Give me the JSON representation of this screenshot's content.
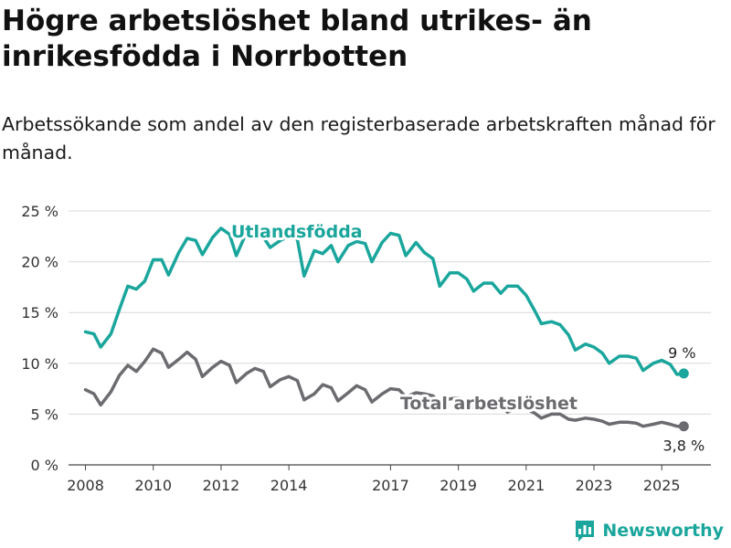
{
  "header": {
    "title": "Högre arbetslöshet bland utrikes- än inrikesfödda i Norrbotten",
    "subtitle": "Arbetssökande som andel av den registerbaserade arbetskraften månad för månad."
  },
  "brand": {
    "name": "Newsworthy",
    "icon": "newsworthy-logo-icon",
    "color": "#1aa69c"
  },
  "chart_data": {
    "type": "line",
    "y_ticks": [
      "0 %",
      "5 %",
      "10 %",
      "15 %",
      "20 %",
      "25 %"
    ],
    "ylim": [
      0,
      25
    ],
    "x_ticks": [
      "2008",
      "2010",
      "2012",
      "2014",
      "2017",
      "2019",
      "2021",
      "2023",
      "2025"
    ],
    "x_tick_years": [
      2008,
      2010,
      2012,
      2014,
      2017,
      2019,
      2021,
      2023,
      2025
    ],
    "xlim": [
      2007.5,
      2026.45
    ],
    "grid": "horizontal",
    "series": [
      {
        "name": "Utlandsfödda",
        "color": "#1aa69c",
        "end_label": "9 %",
        "points": [
          [
            2008.0,
            13.1
          ],
          [
            2008.25,
            12.9
          ],
          [
            2008.45,
            11.6
          ],
          [
            2008.75,
            12.9
          ],
          [
            2009.0,
            15.3
          ],
          [
            2009.25,
            17.6
          ],
          [
            2009.5,
            17.3
          ],
          [
            2009.75,
            18.1
          ],
          [
            2010.0,
            20.2
          ],
          [
            2010.25,
            20.2
          ],
          [
            2010.45,
            18.7
          ],
          [
            2010.75,
            20.9
          ],
          [
            2011.0,
            22.3
          ],
          [
            2011.25,
            22.1
          ],
          [
            2011.45,
            20.7
          ],
          [
            2011.75,
            22.4
          ],
          [
            2012.0,
            23.3
          ],
          [
            2012.25,
            22.7
          ],
          [
            2012.45,
            20.6
          ],
          [
            2012.75,
            22.9
          ],
          [
            2013.0,
            22.5
          ],
          [
            2013.25,
            22.4
          ],
          [
            2013.45,
            21.4
          ],
          [
            2013.75,
            22.1
          ],
          [
            2014.0,
            22.5
          ],
          [
            2014.25,
            22.2
          ],
          [
            2014.45,
            18.6
          ],
          [
            2014.75,
            21.1
          ],
          [
            2015.0,
            20.8
          ],
          [
            2015.25,
            21.6
          ],
          [
            2015.45,
            20.0
          ],
          [
            2015.75,
            21.6
          ],
          [
            2016.0,
            22.0
          ],
          [
            2016.25,
            21.8
          ],
          [
            2016.45,
            20.0
          ],
          [
            2016.75,
            21.9
          ],
          [
            2017.0,
            22.8
          ],
          [
            2017.25,
            22.6
          ],
          [
            2017.45,
            20.6
          ],
          [
            2017.75,
            21.9
          ],
          [
            2018.0,
            20.9
          ],
          [
            2018.25,
            20.3
          ],
          [
            2018.45,
            17.6
          ],
          [
            2018.75,
            18.9
          ],
          [
            2019.0,
            18.9
          ],
          [
            2019.25,
            18.3
          ],
          [
            2019.45,
            17.1
          ],
          [
            2019.75,
            17.9
          ],
          [
            2020.0,
            17.9
          ],
          [
            2020.25,
            16.9
          ],
          [
            2020.45,
            17.6
          ],
          [
            2020.75,
            17.6
          ],
          [
            2021.0,
            16.7
          ],
          [
            2021.25,
            15.2
          ],
          [
            2021.45,
            13.9
          ],
          [
            2021.75,
            14.1
          ],
          [
            2022.0,
            13.8
          ],
          [
            2022.25,
            12.8
          ],
          [
            2022.45,
            11.3
          ],
          [
            2022.75,
            11.9
          ],
          [
            2023.0,
            11.6
          ],
          [
            2023.25,
            11.0
          ],
          [
            2023.45,
            10.0
          ],
          [
            2023.75,
            10.7
          ],
          [
            2024.0,
            10.7
          ],
          [
            2024.25,
            10.5
          ],
          [
            2024.45,
            9.3
          ],
          [
            2024.75,
            10.0
          ],
          [
            2025.0,
            10.3
          ],
          [
            2025.25,
            9.9
          ],
          [
            2025.45,
            8.9
          ],
          [
            2025.65,
            9.0
          ]
        ]
      },
      {
        "name": "Total arbetslöshet",
        "color": "#6b6b70",
        "end_label": "3,8 %",
        "points": [
          [
            2008.0,
            7.4
          ],
          [
            2008.25,
            7.0
          ],
          [
            2008.45,
            5.9
          ],
          [
            2008.75,
            7.2
          ],
          [
            2009.0,
            8.8
          ],
          [
            2009.25,
            9.8
          ],
          [
            2009.5,
            9.2
          ],
          [
            2009.75,
            10.2
          ],
          [
            2010.0,
            11.4
          ],
          [
            2010.25,
            11.0
          ],
          [
            2010.45,
            9.6
          ],
          [
            2010.75,
            10.4
          ],
          [
            2011.0,
            11.1
          ],
          [
            2011.25,
            10.4
          ],
          [
            2011.45,
            8.7
          ],
          [
            2011.75,
            9.6
          ],
          [
            2012.0,
            10.2
          ],
          [
            2012.25,
            9.8
          ],
          [
            2012.45,
            8.1
          ],
          [
            2012.75,
            9.0
          ],
          [
            2013.0,
            9.5
          ],
          [
            2013.25,
            9.2
          ],
          [
            2013.45,
            7.7
          ],
          [
            2013.75,
            8.4
          ],
          [
            2014.0,
            8.7
          ],
          [
            2014.25,
            8.3
          ],
          [
            2014.45,
            6.4
          ],
          [
            2014.75,
            7.0
          ],
          [
            2015.0,
            7.9
          ],
          [
            2015.25,
            7.6
          ],
          [
            2015.45,
            6.3
          ],
          [
            2015.75,
            7.1
          ],
          [
            2016.0,
            7.8
          ],
          [
            2016.25,
            7.4
          ],
          [
            2016.45,
            6.2
          ],
          [
            2016.75,
            7.0
          ],
          [
            2017.0,
            7.5
          ],
          [
            2017.25,
            7.4
          ],
          [
            2017.45,
            6.7
          ],
          [
            2017.75,
            7.1
          ],
          [
            2018.0,
            7.0
          ],
          [
            2018.25,
            6.8
          ],
          [
            2018.45,
            6.1
          ],
          [
            2018.75,
            6.5
          ],
          [
            2019.0,
            6.6
          ],
          [
            2019.25,
            6.3
          ],
          [
            2019.45,
            5.6
          ],
          [
            2019.75,
            6.0
          ],
          [
            2020.0,
            6.1
          ],
          [
            2020.25,
            5.8
          ],
          [
            2020.45,
            5.2
          ],
          [
            2020.75,
            5.7
          ],
          [
            2021.0,
            5.5
          ],
          [
            2021.25,
            5.1
          ],
          [
            2021.45,
            4.6
          ],
          [
            2021.75,
            5.0
          ],
          [
            2022.0,
            5.0
          ],
          [
            2022.25,
            4.5
          ],
          [
            2022.45,
            4.4
          ],
          [
            2022.75,
            4.6
          ],
          [
            2023.0,
            4.5
          ],
          [
            2023.25,
            4.3
          ],
          [
            2023.45,
            4.0
          ],
          [
            2023.75,
            4.2
          ],
          [
            2024.0,
            4.2
          ],
          [
            2024.25,
            4.1
          ],
          [
            2024.45,
            3.8
          ],
          [
            2024.75,
            4.0
          ],
          [
            2025.0,
            4.2
          ],
          [
            2025.25,
            4.0
          ],
          [
            2025.45,
            3.8
          ],
          [
            2025.65,
            3.8
          ]
        ]
      }
    ]
  }
}
